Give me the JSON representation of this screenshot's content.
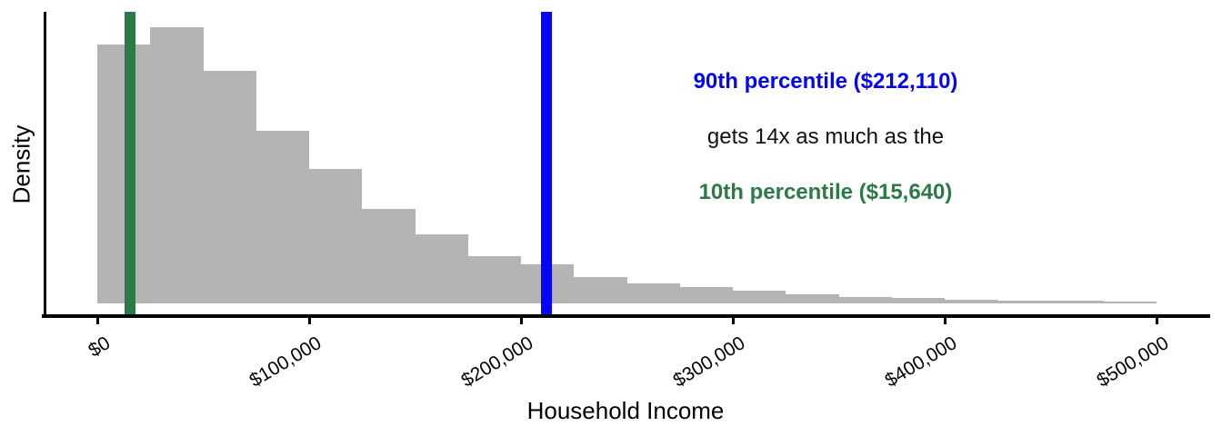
{
  "chart_data": {
    "type": "bar",
    "subtype": "histogram",
    "title": "",
    "xlabel": "Household Income",
    "ylabel": "Density",
    "grid": false,
    "legend": false,
    "xlim": [
      -25000,
      525000
    ],
    "bin_width": 25000,
    "x_ticks": [
      {
        "value": 0,
        "label": "$0"
      },
      {
        "value": 100000,
        "label": "$100,000"
      },
      {
        "value": 200000,
        "label": "$200,000"
      },
      {
        "value": 300000,
        "label": "$300,000"
      },
      {
        "value": 400000,
        "label": "$400,000"
      },
      {
        "value": 500000,
        "label": "$500,000"
      }
    ],
    "bins": [
      {
        "start": 0,
        "end": 25000,
        "rel_density": 0.938
      },
      {
        "start": 25000,
        "end": 50000,
        "rel_density": 1.0
      },
      {
        "start": 50000,
        "end": 75000,
        "rel_density": 0.842
      },
      {
        "start": 75000,
        "end": 100000,
        "rel_density": 0.625
      },
      {
        "start": 100000,
        "end": 125000,
        "rel_density": 0.487
      },
      {
        "start": 125000,
        "end": 150000,
        "rel_density": 0.342
      },
      {
        "start": 150000,
        "end": 175000,
        "rel_density": 0.25
      },
      {
        "start": 175000,
        "end": 200000,
        "rel_density": 0.171
      },
      {
        "start": 200000,
        "end": 225000,
        "rel_density": 0.141
      },
      {
        "start": 225000,
        "end": 250000,
        "rel_density": 0.095
      },
      {
        "start": 250000,
        "end": 275000,
        "rel_density": 0.072
      },
      {
        "start": 275000,
        "end": 300000,
        "rel_density": 0.059
      },
      {
        "start": 300000,
        "end": 325000,
        "rel_density": 0.046
      },
      {
        "start": 325000,
        "end": 350000,
        "rel_density": 0.033
      },
      {
        "start": 350000,
        "end": 375000,
        "rel_density": 0.023
      },
      {
        "start": 375000,
        "end": 400000,
        "rel_density": 0.02
      },
      {
        "start": 400000,
        "end": 425000,
        "rel_density": 0.013
      },
      {
        "start": 425000,
        "end": 450000,
        "rel_density": 0.01
      },
      {
        "start": 450000,
        "end": 475000,
        "rel_density": 0.01
      },
      {
        "start": 475000,
        "end": 500000,
        "rel_density": 0.007
      }
    ],
    "percentile_lines": [
      {
        "name": "10th percentile",
        "value": 15640,
        "color": "#2a7b46"
      },
      {
        "name": "90th percentile",
        "value": 212110,
        "color": "#0504fa"
      }
    ]
  },
  "annotation": {
    "line1": {
      "text": "90th percentile ($212,110)",
      "color": "#0504fa",
      "weight": "bold"
    },
    "line2": {
      "text": "gets 14x as much as the",
      "color": "#111111",
      "weight": "normal"
    },
    "line3": {
      "text": "10th percentile ($15,640)",
      "color": "#2a7b46",
      "weight": "bold"
    }
  },
  "colors": {
    "bar_fill": "#b4b4b4",
    "axis": "#000000",
    "background": "#ffffff"
  }
}
